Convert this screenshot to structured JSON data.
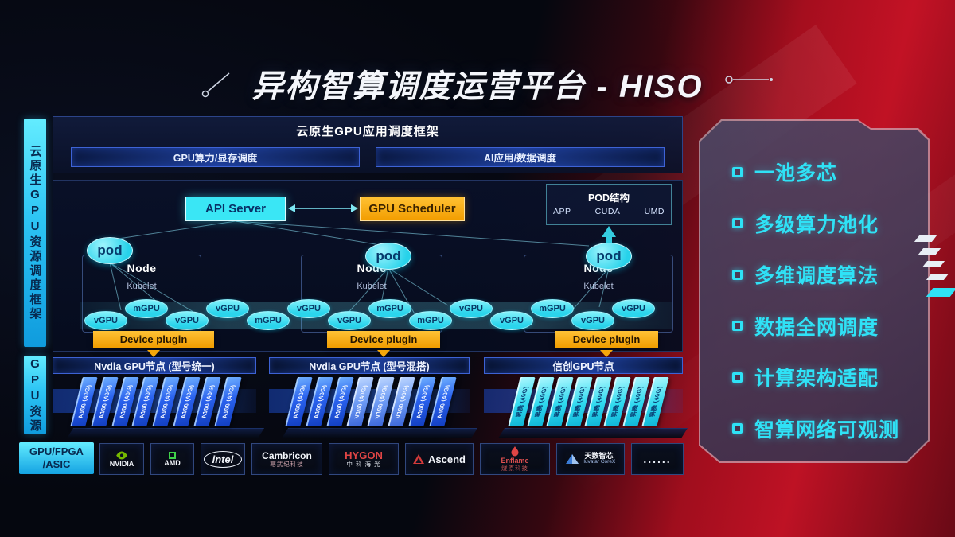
{
  "title": "异构智算调度运营平台 - HISO",
  "sidebar": {
    "framework": "云原生GPU资源调度框架",
    "gpu_resource": "GPU资源",
    "hardware": "GPU/FPGA\n/ASIC"
  },
  "app_framework": {
    "title": "云原生GPU应用调度框架",
    "bars": [
      "GPU算力/显存调度",
      "AI应用/数据调度"
    ]
  },
  "control": {
    "api_server": "API Server",
    "gpu_scheduler": "GPU Scheduler",
    "pod_structure": {
      "title": "POD结构",
      "layers": [
        "APP",
        "CUDA",
        "UMD"
      ]
    }
  },
  "cluster": {
    "pod_label": "pod",
    "node_label": "Node",
    "kubelet_label": "Kubelet",
    "device_plugin_label": "Device plugin",
    "gpu_slices": [
      "vGPU",
      "mGPU",
      "vGPU",
      "vGPU",
      "mGPU",
      "vGPU",
      "vGPU",
      "mGPU",
      "mGPU",
      "vGPU",
      "vGPU",
      "mGPU",
      "vGPU",
      "vGPU"
    ]
  },
  "gpu_groups": [
    {
      "label": "Nvdia GPU节点 (型号统一)",
      "cards": [
        {
          "label": "A100 (40G)",
          "variant": "blue"
        },
        {
          "label": "A100 (40G)",
          "variant": "blue"
        },
        {
          "label": "A100 (40G)",
          "variant": "blue"
        },
        {
          "label": "A100 (40G)",
          "variant": "blue"
        },
        {
          "label": "A100 (40G)",
          "variant": "blue"
        },
        {
          "label": "A100 (40G)",
          "variant": "blue"
        },
        {
          "label": "A100 (40G)",
          "variant": "blue"
        },
        {
          "label": "A100 (40G)",
          "variant": "blue"
        }
      ]
    },
    {
      "label": "Nvdia GPU节点 (型号混搭)",
      "cards": [
        {
          "label": "A100 (40G)",
          "variant": "blue"
        },
        {
          "label": "A100 (40G)",
          "variant": "blue"
        },
        {
          "label": "A100 (40G)",
          "variant": "blue"
        },
        {
          "label": "V100 (40G)",
          "variant": "lightblue"
        },
        {
          "label": "V100 (40G)",
          "variant": "lightblue"
        },
        {
          "label": "V100 (40G)",
          "variant": "lightblue"
        },
        {
          "label": "A100 (40G)",
          "variant": "blue"
        },
        {
          "label": "A100 (40G)",
          "variant": "blue"
        }
      ]
    },
    {
      "label": "信创GPU节点",
      "cards": [
        {
          "label": "昇腾 (40G)",
          "variant": "cyan"
        },
        {
          "label": "昇腾 (40G)",
          "variant": "cyan"
        },
        {
          "label": "昇腾 (40G)",
          "variant": "cyan"
        },
        {
          "label": "昇腾 (40G)",
          "variant": "cyan"
        },
        {
          "label": "昇腾 (40G)",
          "variant": "cyan"
        },
        {
          "label": "昇腾 (40G)",
          "variant": "cyan"
        },
        {
          "label": "昇腾 (40G)",
          "variant": "cyan"
        },
        {
          "label": "昇腾 (40G)",
          "variant": "cyan"
        }
      ]
    }
  ],
  "vendors": [
    {
      "name": "NVIDIA",
      "sub": "",
      "icon": "nvidia",
      "name_color": "#f2f5fa",
      "sub_color": ""
    },
    {
      "name": "AMD",
      "sub": "",
      "icon": "amd",
      "name_color": "#f2f5fa",
      "sub_color": ""
    },
    {
      "name": "intel",
      "sub": "",
      "icon": "intel",
      "name_color": "#f2f5fa",
      "sub_color": ""
    },
    {
      "name": "Cambricon",
      "sub": "寒武纪科技",
      "icon": "none",
      "name_color": "#f2f5fa",
      "sub_color": "#c9a0a8"
    },
    {
      "name": "HYGON",
      "sub": "中 科 海 光",
      "icon": "none",
      "name_color": "#e04545",
      "sub_color": "#e8edf5"
    },
    {
      "name": "Ascend",
      "sub": "",
      "icon": "ascend",
      "name_color": "#f2f5fa",
      "sub_color": ""
    },
    {
      "name": "Enflame",
      "sub": "燧原科技",
      "icon": "enflame",
      "name_color": "#e05050",
      "sub_color": "#c05555"
    },
    {
      "name": "天数智芯",
      "sub": "Iluvatar CoreX",
      "icon": "iluvatar",
      "name_color": "#f2f5fa",
      "sub_color": "#aac4f0"
    },
    {
      "name": "......",
      "sub": "",
      "icon": "none",
      "name_color": "#e8edf5",
      "sub_color": ""
    }
  ],
  "features": [
    "一池多芯",
    "多级算力池化",
    "多维调度算法",
    "数据全网调度",
    "计算架构适配",
    "智算网络可观测"
  ],
  "colors": {
    "accent_cyan": "#2fe2f6",
    "accent_orange": "#f5a700",
    "card_blue": "#2a62ee",
    "card_cyan": "#2fd9ef",
    "bg_red": "#c41225"
  }
}
